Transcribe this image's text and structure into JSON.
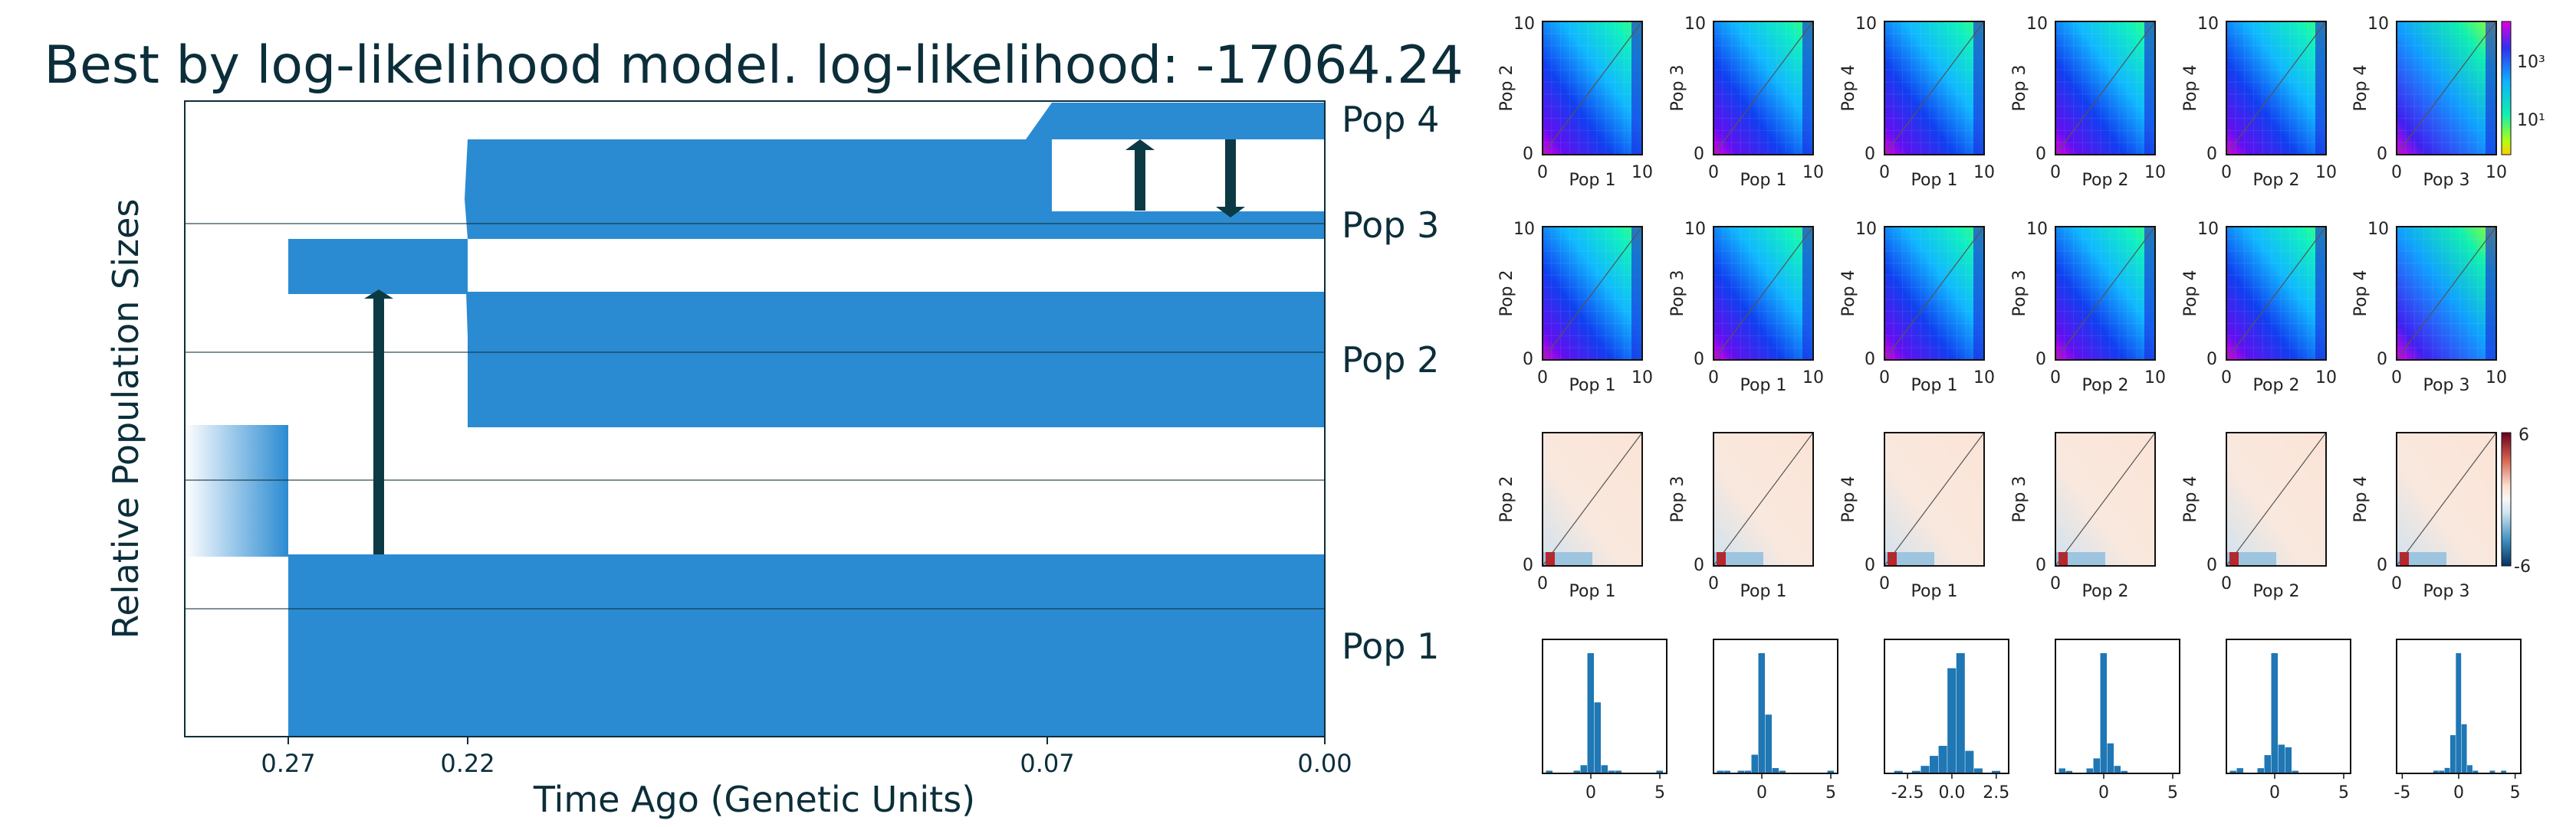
{
  "chart_data": [
    {
      "type": "demographic_model",
      "title": "Best by log-likelihood model. log-likelihood: -17064.24",
      "xlabel": "Time Ago (Genetic Units)",
      "ylabel": "Relative Population Sizes",
      "x_ticks": [
        "0.27",
        "0.22",
        "0.07",
        "0.00"
      ],
      "populations": [
        "Pop 1",
        "Pop 2",
        "Pop 3",
        "Pop 4"
      ],
      "epochs": [
        {
          "start": 0.3,
          "end": 0.27,
          "populations": [
            "ancestral"
          ]
        },
        {
          "start": 0.27,
          "end": 0.22,
          "populations": [
            "Pop 1",
            "Pop 2"
          ]
        },
        {
          "start": 0.22,
          "end": 0.07,
          "populations": [
            "Pop 1",
            "Pop 2",
            "Pop 3"
          ]
        },
        {
          "start": 0.07,
          "end": 0.0,
          "populations": [
            "Pop 1",
            "Pop 2",
            "Pop 3",
            "Pop 4"
          ]
        }
      ],
      "migrations": [
        {
          "time": 0.245,
          "from": "Pop 1",
          "to": "Pop 2"
        },
        {
          "time": 0.05,
          "from": "Pop 3",
          "to": "Pop 4"
        },
        {
          "time": 0.025,
          "from": "Pop 4",
          "to": "Pop 3"
        }
      ],
      "colors": {
        "population": "#2b8bd2",
        "text": "#0b2e3a",
        "migration_arrow": "#0b3a45"
      }
    },
    {
      "type": "heatmap",
      "rows": [
        {
          "kind": "observed_sfs",
          "panels": [
            {
              "x": "Pop 1",
              "y": "Pop 2"
            },
            {
              "x": "Pop 1",
              "y": "Pop 3"
            },
            {
              "x": "Pop 1",
              "y": "Pop 4"
            },
            {
              "x": "Pop 2",
              "y": "Pop 3"
            },
            {
              "x": "Pop 2",
              "y": "Pop 4"
            },
            {
              "x": "Pop 3",
              "y": "Pop 4"
            }
          ],
          "tick_labels": [
            "0",
            "10"
          ],
          "colorbar": {
            "ticks": [
              "10³",
              "10¹"
            ],
            "scale": "log"
          }
        },
        {
          "kind": "model_sfs",
          "panels": [
            {
              "x": "Pop 1",
              "y": "Pop 2"
            },
            {
              "x": "Pop 1",
              "y": "Pop 3"
            },
            {
              "x": "Pop 1",
              "y": "Pop 4"
            },
            {
              "x": "Pop 2",
              "y": "Pop 3"
            },
            {
              "x": "Pop 2",
              "y": "Pop 4"
            },
            {
              "x": "Pop 3",
              "y": "Pop 4"
            }
          ],
          "tick_labels": [
            "0",
            "10"
          ]
        },
        {
          "kind": "residuals",
          "panels": [
            {
              "x": "Pop 1",
              "y": "Pop 2"
            },
            {
              "x": "Pop 1",
              "y": "Pop 3"
            },
            {
              "x": "Pop 1",
              "y": "Pop 4"
            },
            {
              "x": "Pop 2",
              "y": "Pop 3"
            },
            {
              "x": "Pop 2",
              "y": "Pop 4"
            },
            {
              "x": "Pop 3",
              "y": "Pop 4"
            }
          ],
          "tick_labels": [
            "0"
          ],
          "colorbar": {
            "ticks": [
              "6",
              "-6"
            ],
            "range": [
              -6,
              6
            ]
          }
        }
      ]
    },
    {
      "type": "bar",
      "kind": "residual_histograms",
      "panels": [
        {
          "xlim": [
            -3.5,
            5.5
          ],
          "x_ticks": [
            "0",
            "5"
          ],
          "bins": [
            -3.0,
            -2.5,
            -2.0,
            -1.5,
            -1.0,
            -0.5,
            0.0,
            0.5,
            1.0,
            1.5,
            2.0,
            2.5,
            3.0,
            3.5,
            4.0,
            4.5,
            5.0
          ],
          "counts": [
            1,
            0,
            0,
            0,
            1,
            3,
            44,
            26,
            3,
            1,
            1,
            0,
            0,
            0,
            0,
            0,
            1
          ]
        },
        {
          "xlim": [
            -3.5,
            5.5
          ],
          "x_ticks": [
            "0",
            "5"
          ],
          "bins": [
            -3.0,
            -2.5,
            -2.0,
            -1.5,
            -1.0,
            -0.5,
            0.0,
            0.5,
            1.0,
            1.5,
            2.0,
            2.5,
            3.0,
            3.5,
            4.0,
            4.5,
            5.0
          ],
          "counts": [
            1,
            1,
            0,
            1,
            1,
            7,
            45,
            22,
            2,
            1,
            0,
            0,
            0,
            0,
            0,
            0,
            1
          ]
        },
        {
          "xlim": [
            -3.8,
            3.2
          ],
          "x_ticks": [
            "-2.5",
            "0.0",
            "2.5"
          ],
          "bins": [
            -3.5,
            -3.0,
            -2.5,
            -2.0,
            -1.5,
            -1.0,
            -0.5,
            0.0,
            0.5,
            1.0,
            1.5,
            2.0,
            2.5
          ],
          "counts": [
            0,
            1,
            0,
            1,
            3,
            7,
            11,
            42,
            48,
            9,
            2,
            0,
            1
          ]
        },
        {
          "xlim": [
            -3.5,
            5.5
          ],
          "x_ticks": [
            "0",
            "5"
          ],
          "bins": [
            -3.0,
            -2.5,
            -2.0,
            -1.5,
            -1.0,
            -0.5,
            0.0,
            0.5,
            1.0,
            1.5,
            2.0,
            2.5,
            3.0,
            3.5,
            4.0,
            4.5,
            5.0
          ],
          "counts": [
            2,
            1,
            0,
            0,
            2,
            6,
            48,
            12,
            3,
            1,
            0,
            0,
            0,
            0,
            0,
            0,
            0
          ]
        },
        {
          "xlim": [
            -3.5,
            5.5
          ],
          "x_ticks": [
            "0",
            "5"
          ],
          "bins": [
            -3.0,
            -2.5,
            -2.0,
            -1.5,
            -1.0,
            -0.5,
            0.0,
            0.5,
            1.0,
            1.5,
            2.0,
            2.5,
            3.0,
            3.5,
            4.0,
            4.5,
            5.0
          ],
          "counts": [
            1,
            2,
            0,
            0,
            2,
            7,
            46,
            11,
            10,
            1,
            0,
            0,
            0,
            0,
            0,
            0,
            0
          ]
        },
        {
          "xlim": [
            -5.5,
            5.5
          ],
          "x_ticks": [
            "-5",
            "0",
            "5"
          ],
          "bins": [
            -5.0,
            -4.5,
            -4.0,
            -3.5,
            -3.0,
            -2.5,
            -2.0,
            -1.5,
            -1.0,
            -0.5,
            0.0,
            0.5,
            1.0,
            1.5,
            2.0,
            2.5,
            3.0,
            3.5,
            4.0,
            4.5,
            5.0
          ],
          "counts": [
            0,
            0,
            0,
            0,
            0,
            0,
            1,
            1,
            2,
            14,
            44,
            18,
            3,
            1,
            0,
            0,
            1,
            0,
            1,
            0,
            0
          ]
        }
      ]
    }
  ]
}
